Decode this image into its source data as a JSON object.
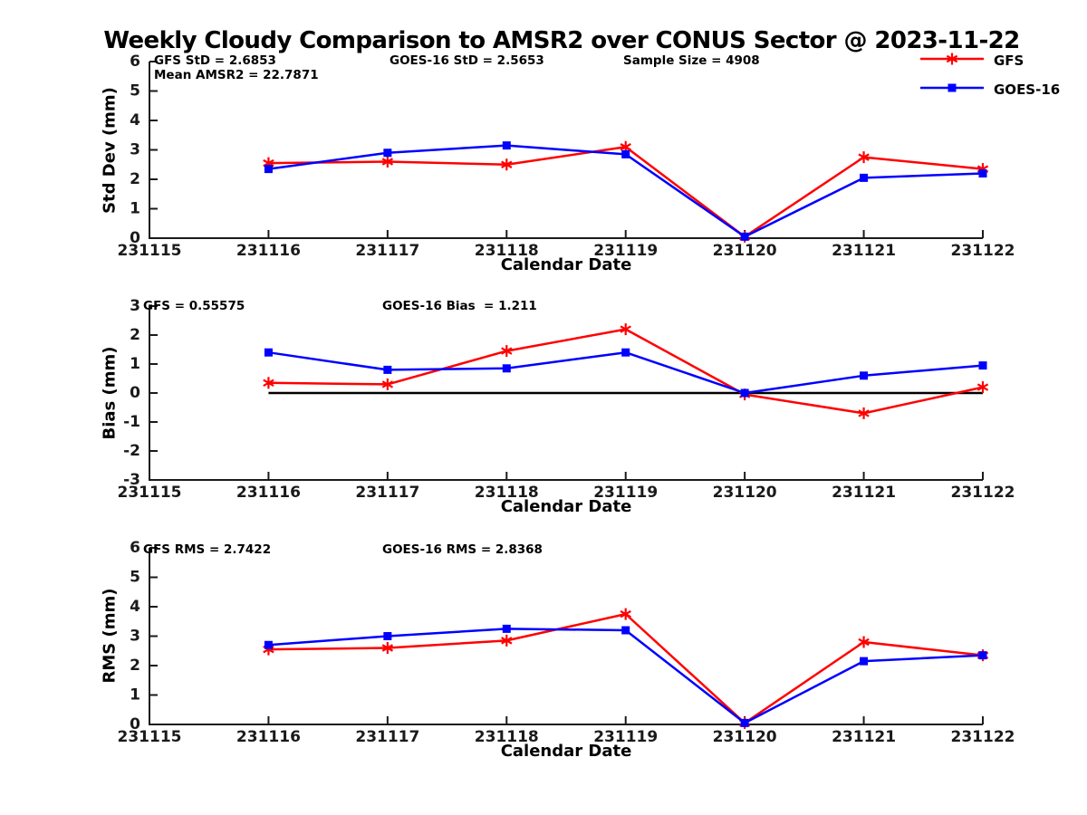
{
  "title": "Weekly Cloudy Comparison to AMSR2 over CONUS Sector @ 2023-11-22",
  "colors": {
    "gfs": "#ff0000",
    "goes16": "#0000ff",
    "axis": "#1a1a1a",
    "zero_line": "#000000"
  },
  "legend": [
    {
      "name": "GFS",
      "color": "#ff0000",
      "marker": "asterisk"
    },
    {
      "name": "GOES-16",
      "color": "#0000ff",
      "marker": "square"
    }
  ],
  "chart_data": [
    {
      "type": "line",
      "ylabel": "Std Dev (mm)",
      "xlabel": "Calendar Date",
      "ylim": [
        0,
        6
      ],
      "yticks": [
        0,
        1,
        2,
        3,
        4,
        5,
        6
      ],
      "xticks": [
        "231115",
        "231116",
        "231117",
        "231118",
        "231119",
        "231120",
        "231121",
        "231122"
      ],
      "x": [
        "231116",
        "231117",
        "231118",
        "231119",
        "231120",
        "231121",
        "231122"
      ],
      "grid": false,
      "zero_line": false,
      "series": [
        {
          "name": "GFS",
          "color": "#ff0000",
          "marker": "asterisk",
          "values": [
            2.55,
            2.6,
            2.5,
            3.1,
            0.05,
            2.75,
            2.35
          ]
        },
        {
          "name": "GOES-16",
          "color": "#0000ff",
          "marker": "square",
          "values": [
            2.35,
            2.9,
            3.15,
            2.85,
            0.05,
            2.05,
            2.2
          ]
        }
      ],
      "annotations": [
        {
          "text": "GFS StD = 2.6853"
        },
        {
          "text": "GOES-16 StD = 2.5653"
        },
        {
          "text": "Sample Size = 4908"
        },
        {
          "text": "Mean AMSR2 = 22.7871"
        }
      ]
    },
    {
      "type": "line",
      "ylabel": "Bias (mm)",
      "xlabel": "Calendar Date",
      "ylim": [
        -3,
        3
      ],
      "yticks": [
        -3,
        -2,
        -1,
        0,
        1,
        2,
        3
      ],
      "xticks": [
        "231115",
        "231116",
        "231117",
        "231118",
        "231119",
        "231120",
        "231121",
        "231122"
      ],
      "x": [
        "231116",
        "231117",
        "231118",
        "231119",
        "231120",
        "231121",
        "231122"
      ],
      "grid": false,
      "zero_line": true,
      "series": [
        {
          "name": "GFS",
          "color": "#ff0000",
          "marker": "asterisk",
          "values": [
            0.35,
            0.3,
            1.45,
            2.2,
            -0.05,
            -0.7,
            0.2
          ]
        },
        {
          "name": "GOES-16",
          "color": "#0000ff",
          "marker": "square",
          "values": [
            1.4,
            0.8,
            0.85,
            1.4,
            0.0,
            0.6,
            0.95
          ]
        }
      ],
      "annotations": [
        {
          "text": "GFS = 0.55575"
        },
        {
          "text": "GOES-16 Bias  = 1.211"
        }
      ]
    },
    {
      "type": "line",
      "ylabel": "RMS (mm)",
      "xlabel": "Calendar Date",
      "ylim": [
        0,
        6
      ],
      "yticks": [
        0,
        1,
        2,
        3,
        4,
        5,
        6
      ],
      "xticks": [
        "231115",
        "231116",
        "231117",
        "231118",
        "231119",
        "231120",
        "231121",
        "231122"
      ],
      "x": [
        "231116",
        "231117",
        "231118",
        "231119",
        "231120",
        "231121",
        "231122"
      ],
      "grid": false,
      "zero_line": false,
      "series": [
        {
          "name": "GFS",
          "color": "#ff0000",
          "marker": "asterisk",
          "values": [
            2.55,
            2.6,
            2.85,
            3.75,
            0.05,
            2.8,
            2.35
          ]
        },
        {
          "name": "GOES-16",
          "color": "#0000ff",
          "marker": "square",
          "values": [
            2.7,
            3.0,
            3.25,
            3.2,
            0.05,
            2.15,
            2.35
          ]
        }
      ],
      "annotations": [
        {
          "text": "GFS RMS = 2.7422"
        },
        {
          "text": "GOES-16 RMS = 2.8368"
        }
      ]
    }
  ]
}
